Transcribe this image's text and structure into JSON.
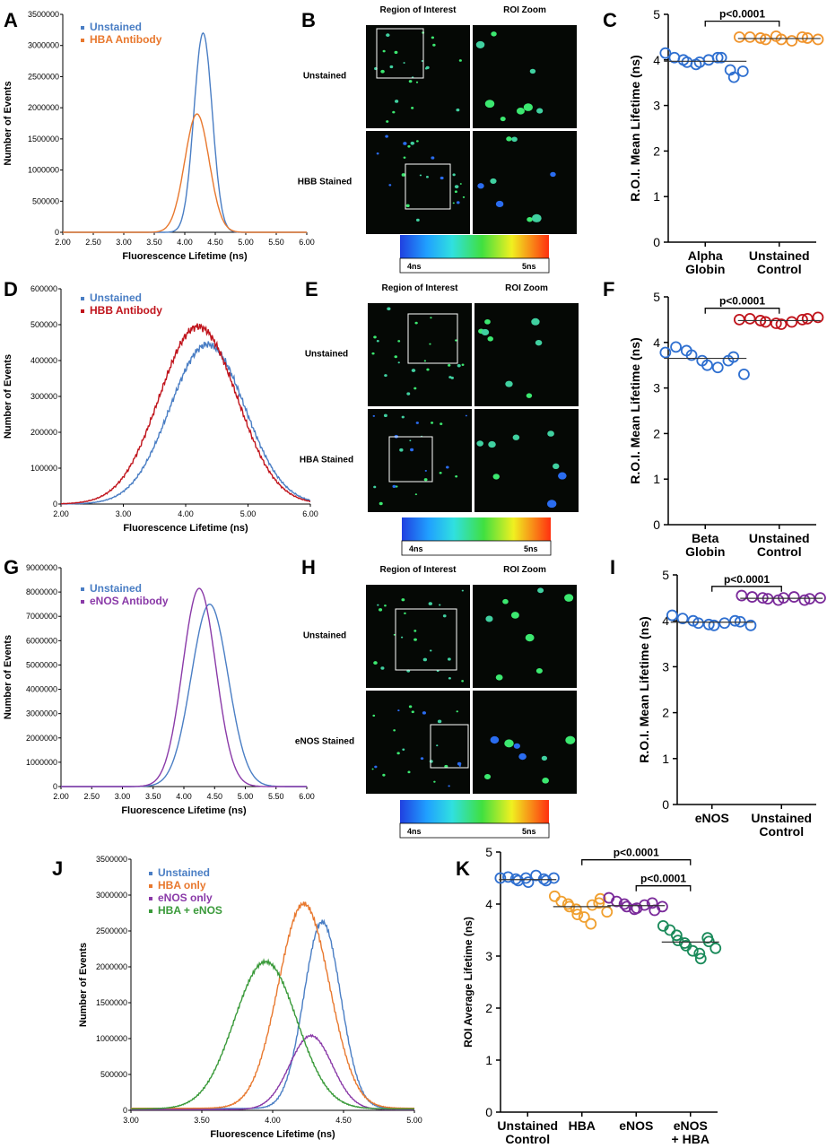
{
  "panels": {
    "A": {
      "letter": "A"
    },
    "B": {
      "letter": "B"
    },
    "C": {
      "letter": "C"
    },
    "D": {
      "letter": "D"
    },
    "E": {
      "letter": "E"
    },
    "F": {
      "letter": "F"
    },
    "G": {
      "letter": "G"
    },
    "H": {
      "letter": "H"
    },
    "I": {
      "letter": "I"
    },
    "J": {
      "letter": "J"
    },
    "K": {
      "letter": "K"
    }
  },
  "microscopy": {
    "B": {
      "col_roi": "Region of Interest",
      "col_zoom": "ROI Zoom",
      "row1": "Unstained",
      "row2": "HBB Stained",
      "scale_min": "4ns",
      "scale_max": "5ns"
    },
    "E": {
      "col_roi": "Region of Interest",
      "col_zoom": "ROI Zoom",
      "row1": "Unstained",
      "row2": "HBA Stained",
      "scale_min": "4ns",
      "scale_max": "5ns"
    },
    "H": {
      "col_roi": "Region of Interest",
      "col_zoom": "ROI Zoom",
      "row1": "Unstained",
      "row2": "eNOS Stained",
      "scale_min": "4ns",
      "scale_max": "5ns"
    }
  },
  "colors": {
    "unstained": "#4a7ec4",
    "hba": "#e8782e",
    "hbb": "#c0141c",
    "enos": "#8a3aa8",
    "hba_enos": "#3a9a3a",
    "k_unstained": "#2e6fd0",
    "k_hba": "#f0a030",
    "k_enos": "#7a2a9a",
    "k_enos_hba": "#1a8a5a"
  },
  "chart_data": [
    {
      "id": "A",
      "type": "line",
      "xlabel": "Fluorescence Lifetime (ns)",
      "ylabel": "Number of Events",
      "xlim": [
        2.0,
        6.0
      ],
      "ylim": [
        0,
        3500000
      ],
      "xticks": [
        "2.00",
        "2.50",
        "3.00",
        "3.50",
        "4.00",
        "4.50",
        "5.00",
        "5.50",
        "6.00"
      ],
      "yticks": [
        "0",
        "500000",
        "1000000",
        "1500000",
        "2000000",
        "2500000",
        "3000000",
        "3500000"
      ],
      "legend": "top-left",
      "series": [
        {
          "name": "Unstained",
          "color": "#4a7ec4",
          "peak": 4.3,
          "height": 3200000,
          "sd": 0.15
        },
        {
          "name": "HBA Antibody",
          "color": "#e8782e",
          "peak": 4.2,
          "height": 1900000,
          "sd": 0.2
        }
      ]
    },
    {
      "id": "C",
      "type": "scatter",
      "ylabel": "R.O.I. Mean Lifetime (ns)",
      "ylim": [
        0,
        5
      ],
      "yticks": [
        "0",
        "1",
        "2",
        "3",
        "4",
        "5"
      ],
      "categories": [
        [
          "Alpha",
          "Globin"
        ],
        [
          "Unstained",
          "Control"
        ]
      ],
      "groups": [
        {
          "color": "#2e6fd0",
          "mean": 3.97,
          "values": [
            4.15,
            4.05,
            4.0,
            3.95,
            3.9,
            3.95,
            4.0,
            4.05,
            4.05,
            3.78,
            3.62,
            3.75
          ]
        },
        {
          "color": "#f0952e",
          "mean": 4.47,
          "values": [
            4.5,
            4.5,
            4.48,
            4.45,
            4.52,
            4.45,
            4.42,
            4.5,
            4.48,
            4.45
          ]
        }
      ],
      "significance": [
        {
          "from": 0,
          "to": 1,
          "label": "p<0.0001",
          "y": 4.85
        }
      ]
    },
    {
      "id": "D",
      "type": "line",
      "xlabel": "Fluorescence Lifetime (ns)",
      "ylabel": "Number of Events",
      "xlim": [
        2.0,
        6.0
      ],
      "ylim": [
        0,
        600000
      ],
      "xticks": [
        "2.00",
        "3.00",
        "4.00",
        "5.00",
        "6.00"
      ],
      "yticks": [
        "0",
        "100000",
        "200000",
        "300000",
        "400000",
        "500000",
        "600000"
      ],
      "legend": "top-left",
      "series": [
        {
          "name": "Unstained",
          "color": "#4a7ec4",
          "peak": 4.35,
          "height": 445000,
          "sd": 0.6
        },
        {
          "name": "HBB Antibody",
          "color": "#c0141c",
          "peak": 4.2,
          "height": 495000,
          "sd": 0.62
        }
      ]
    },
    {
      "id": "F",
      "type": "scatter",
      "ylabel": "R.O.I. Mean Lifetime (ns)",
      "ylim": [
        0,
        5
      ],
      "yticks": [
        "0",
        "1",
        "2",
        "3",
        "4",
        "5"
      ],
      "categories": [
        [
          "Beta",
          "Globin"
        ],
        [
          "Unstained",
          "Control"
        ]
      ],
      "groups": [
        {
          "color": "#2e6fd0",
          "mean": 3.65,
          "values": [
            3.78,
            3.9,
            3.82,
            3.72,
            3.6,
            3.5,
            3.45,
            3.6,
            3.68,
            3.3
          ]
        },
        {
          "color": "#c0141c",
          "mean": 4.48,
          "values": [
            4.5,
            4.52,
            4.48,
            4.45,
            4.42,
            4.4,
            4.45,
            4.5,
            4.52,
            4.55
          ]
        }
      ],
      "significance": [
        {
          "from": 0,
          "to": 1,
          "label": "p<0.0001",
          "y": 4.75
        }
      ]
    },
    {
      "id": "G",
      "type": "line",
      "xlabel": "Fluorescence Lifetime (ns)",
      "ylabel": "Number of Events",
      "xlim": [
        2.0,
        6.0
      ],
      "ylim": [
        0,
        9000000
      ],
      "xticks": [
        "2.00",
        "2.50",
        "3.00",
        "3.50",
        "4.00",
        "4.50",
        "5.00",
        "5.50",
        "6.00"
      ],
      "yticks": [
        "0",
        "1000000",
        "2000000",
        "3000000",
        "4000000",
        "5000000",
        "6000000",
        "7000000",
        "8000000",
        "9000000"
      ],
      "legend": "top-left",
      "series": [
        {
          "name": "Unstained",
          "color": "#4a7ec4",
          "peak": 4.42,
          "height": 7500000,
          "sd": 0.3
        },
        {
          "name": "eNOS Antibody",
          "color": "#8a3aa8",
          "peak": 4.25,
          "height": 8150000,
          "sd": 0.27
        }
      ]
    },
    {
      "id": "I",
      "type": "scatter",
      "ylabel": "R.O.I. Mean Lifetime (ns)",
      "ylim": [
        0,
        5
      ],
      "yticks": [
        "0",
        "1",
        "2",
        "3",
        "4",
        "5"
      ],
      "categories": [
        [
          "eNOS"
        ],
        [
          "Unstained",
          "Control"
        ]
      ],
      "groups": [
        {
          "color": "#2e6fd0",
          "mean": 3.97,
          "values": [
            4.12,
            4.05,
            4.0,
            3.95,
            3.92,
            3.9,
            3.95,
            4.0,
            3.98,
            3.9
          ]
        },
        {
          "color": "#7a2a9a",
          "mean": 4.49,
          "values": [
            4.55,
            4.52,
            4.5,
            4.48,
            4.45,
            4.5,
            4.52,
            4.45,
            4.48,
            4.5
          ]
        }
      ],
      "significance": [
        {
          "from": 0,
          "to": 1,
          "label": "p<0.0001",
          "y": 4.75
        }
      ]
    },
    {
      "id": "J",
      "type": "line",
      "xlabel": "Fluorescence Lifetime (ns)",
      "ylabel": "Number of Events",
      "xlim": [
        3.0,
        5.0
      ],
      "ylim": [
        0,
        3500000
      ],
      "xticks": [
        "3.00",
        "3.50",
        "4.00",
        "4.50",
        "5.00"
      ],
      "yticks": [
        "0",
        "500000",
        "1000000",
        "1500000",
        "2000000",
        "2500000",
        "3000000",
        "3500000"
      ],
      "legend": "top-left",
      "series": [
        {
          "name": "Unstained",
          "color": "#4a7ec4",
          "peak": 4.35,
          "height": 2600000,
          "sd": 0.13
        },
        {
          "name": "HBA only",
          "color": "#e8782e",
          "peak": 4.22,
          "height": 2850000,
          "sd": 0.18
        },
        {
          "name": "eNOS only",
          "color": "#8a3aa8",
          "peak": 4.27,
          "height": 1030000,
          "sd": 0.15
        },
        {
          "name": "HBA + eNOS",
          "color": "#3a9a3a",
          "peak": 3.95,
          "height": 2050000,
          "sd": 0.22
        }
      ]
    },
    {
      "id": "K",
      "type": "scatter",
      "ylabel": "ROI Average Lifetime (ns)",
      "ylim": [
        0,
        5
      ],
      "yticks": [
        "0",
        "1",
        "2",
        "3",
        "4",
        "5"
      ],
      "categories": [
        [
          "Unstained",
          "Control"
        ],
        [
          "HBA"
        ],
        [
          "eNOS"
        ],
        [
          "eNOS",
          "+ HBA"
        ]
      ],
      "groups": [
        {
          "color": "#2e6fd0",
          "mean": 4.47,
          "values": [
            4.5,
            4.52,
            4.48,
            4.45,
            4.5,
            4.42,
            4.55,
            4.48,
            4.45,
            4.5
          ]
        },
        {
          "color": "#f0a030",
          "mean": 3.95,
          "values": [
            4.15,
            4.05,
            4.0,
            3.95,
            3.9,
            3.8,
            3.75,
            3.62,
            3.98,
            4.02,
            4.1,
            3.85
          ]
        },
        {
          "color": "#7a2a9a",
          "mean": 3.97,
          "values": [
            4.12,
            4.05,
            4.0,
            3.95,
            3.9,
            3.92,
            3.98,
            4.02,
            3.88,
            3.95
          ]
        },
        {
          "color": "#1a8a5a",
          "mean": 3.27,
          "values": [
            3.58,
            3.5,
            3.4,
            3.3,
            3.25,
            3.2,
            3.1,
            3.05,
            2.95,
            3.35,
            3.28,
            3.15
          ]
        }
      ],
      "significance": [
        {
          "from": 1,
          "to": 3,
          "label": "p<0.0001",
          "y": 4.85
        },
        {
          "from": 2,
          "to": 3,
          "label": "p<0.0001",
          "y": 4.35
        }
      ]
    }
  ]
}
